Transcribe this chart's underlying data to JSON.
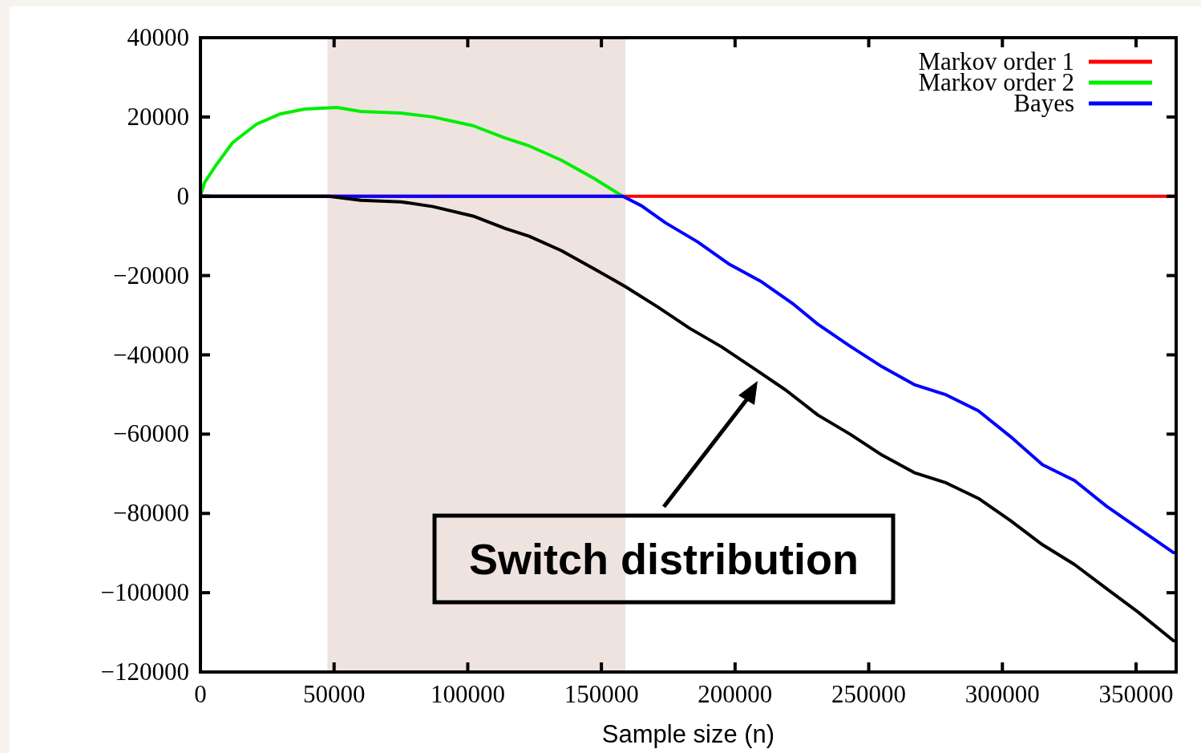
{
  "chart_data": {
    "type": "line",
    "xlabel": "Sample size (n)",
    "xlim": [
      0,
      365000
    ],
    "ylim": [
      -120000,
      40000
    ],
    "xticks": [
      0,
      50000,
      100000,
      150000,
      200000,
      250000,
      300000,
      350000
    ],
    "yticks": [
      {
        "value": -120000,
        "label": "−120000"
      },
      {
        "value": -100000,
        "label": "−100000"
      },
      {
        "value": -80000,
        "label": "−80000"
      },
      {
        "value": -60000,
        "label": "−60000"
      },
      {
        "value": -40000,
        "label": "−40000"
      },
      {
        "value": -20000,
        "label": "−20000"
      },
      0,
      20000,
      40000
    ],
    "grid": false,
    "legend": "top right",
    "line_style": "solid",
    "bands": [
      {
        "axis": "x",
        "from": 47500,
        "to": 159000,
        "color": "#efe3e0"
      }
    ],
    "annotations": [
      "Switch distribution"
    ],
    "series": [
      {
        "name": "Markov order 1",
        "color": "#ff0000",
        "x": [
          0,
          365000
        ],
        "values": [
          0,
          0
        ]
      },
      {
        "name": "Markov order 2",
        "color": "#00ee00",
        "x": [
          0,
          1500,
          6000,
          12000,
          21000,
          30000,
          39000,
          51000,
          60000,
          75000,
          87000,
          102000,
          114000,
          123000,
          135000,
          147000,
          158000
        ],
        "values": [
          0,
          3400,
          8000,
          13500,
          18200,
          20800,
          22000,
          22400,
          21400,
          21000,
          20000,
          17800,
          14700,
          12700,
          9100,
          4600,
          0
        ]
      },
      {
        "name": "Bayes",
        "color": "#0000ff",
        "x": [
          0,
          158000,
          165000,
          174000,
          186000,
          198000,
          210000,
          222000,
          231000,
          243000,
          255000,
          267000,
          279000,
          291000,
          303000,
          315000,
          327000,
          339000,
          351000,
          364000
        ],
        "values": [
          0,
          0,
          -2400,
          -6700,
          -11500,
          -17200,
          -21600,
          -27300,
          -32300,
          -37800,
          -43000,
          -47500,
          -50100,
          -54100,
          -60600,
          -67700,
          -71700,
          -78200,
          -83800,
          -89900
        ]
      },
      {
        "color": "#000000",
        "x": [
          0,
          48000,
          60000,
          75000,
          87000,
          102000,
          114000,
          123000,
          135000,
          147000,
          159000,
          171000,
          183000,
          195000,
          207000,
          219000,
          231000,
          243000,
          255000,
          267000,
          279000,
          291000,
          303000,
          315000,
          327000,
          339000,
          351000,
          364000
        ],
        "values": [
          0,
          0,
          -1000,
          -1400,
          -2600,
          -5000,
          -8100,
          -10100,
          -13700,
          -18200,
          -22800,
          -27900,
          -33300,
          -38000,
          -43400,
          -48900,
          -55200,
          -60000,
          -65300,
          -69700,
          -72300,
          -76200,
          -81800,
          -87900,
          -92900,
          -99000,
          -105000,
          -112100
        ]
      }
    ]
  }
}
